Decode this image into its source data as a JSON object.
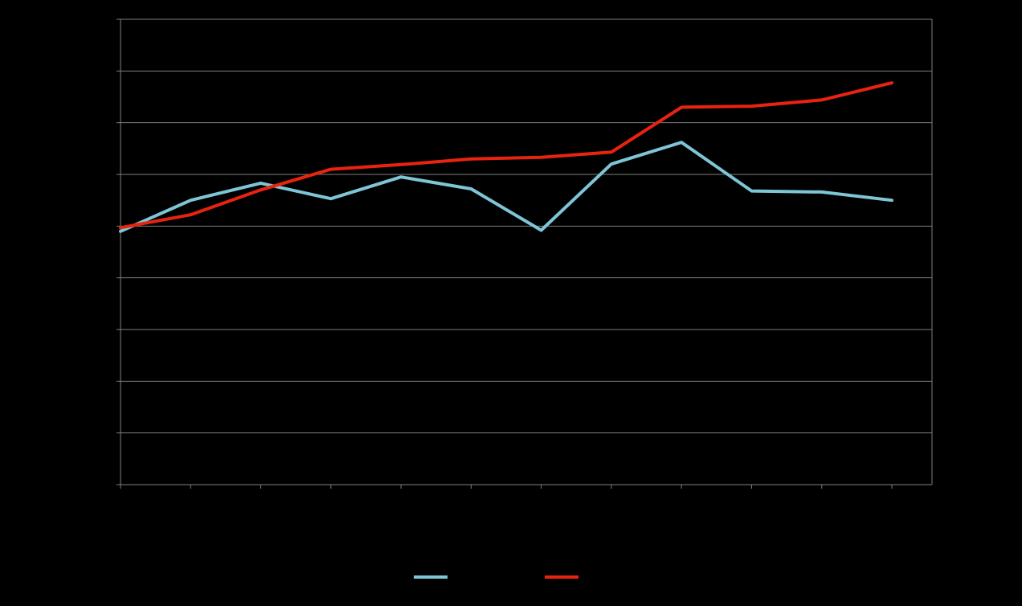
{
  "chart_data": {
    "type": "line",
    "title": "",
    "xlabel": "",
    "ylabel": "",
    "x": [
      1,
      2,
      3,
      4,
      5,
      6,
      7,
      8,
      9,
      10,
      11,
      12
    ],
    "ylim": [
      0,
      9
    ],
    "y_gridlines": [
      1,
      2,
      3,
      4,
      5,
      6,
      7,
      8,
      9
    ],
    "grid": true,
    "legend_position": "bottom",
    "series": [
      {
        "color": "#7ec5d6",
        "values": [
          4.9,
          5.5,
          5.83,
          5.53,
          5.95,
          5.72,
          4.92,
          6.2,
          6.62,
          5.68,
          5.66,
          5.5
        ]
      },
      {
        "color": "#e8230f",
        "values": [
          4.97,
          5.22,
          5.7,
          6.1,
          6.19,
          6.3,
          6.33,
          6.43,
          7.3,
          7.32,
          7.44,
          7.77
        ]
      }
    ]
  }
}
